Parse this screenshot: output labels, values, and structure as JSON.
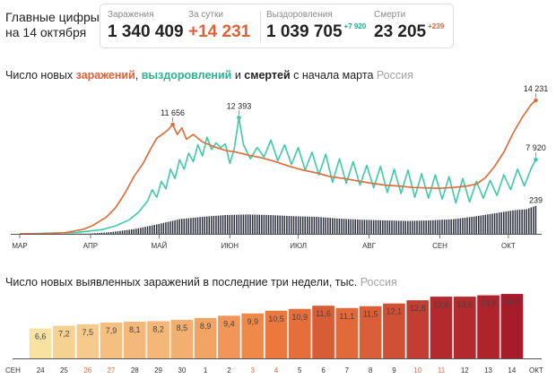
{
  "header": {
    "title_line1": "Главные цифры",
    "title_line2": "на 14 октября",
    "stats": [
      {
        "label": "Заражения",
        "value": "1 340 409",
        "delta": ""
      },
      {
        "label": "За сутки",
        "value": "+14 231",
        "delta": ""
      },
      {
        "label": "Выздоровления",
        "value": "1 039 705",
        "delta": "+7 920"
      },
      {
        "label": "Смерти",
        "value": "23 205",
        "delta": "+239"
      }
    ]
  },
  "colors": {
    "cases": "#d9703f",
    "recoveries": "#3dc9aa",
    "deaths": "#2a2e3c",
    "bar_low": "#f8e2a2",
    "bar_mid": "#ee7b3d",
    "bar_high": "#a81b2b",
    "label": "#444444",
    "axis": "#555555"
  },
  "chart_data": [
    {
      "type": "line",
      "title_parts": {
        "prefix": "Число новых ",
        "cases": "заражений",
        "sep1": ", ",
        "recoveries": "выздоровлений",
        "sep2": " и ",
        "deaths": "смертей",
        "suffix": " с начала марта",
        "region": "Россия"
      },
      "x_ticks": [
        "МАР",
        "АПР",
        "МАЙ",
        "ИЮН",
        "ИЮЛ",
        "АВГ",
        "СЕН",
        "ОКТ"
      ],
      "x_tick_positions": [
        0,
        31,
        61,
        92,
        122,
        153,
        184,
        214
      ],
      "x_range": [
        0,
        227
      ],
      "ylim_lines": [
        0,
        15000
      ],
      "ylim_deaths": [
        0,
        450
      ],
      "grid": false,
      "series": [
        {
          "key": "cases",
          "points": [
            [
              0,
              0
            ],
            [
              10,
              15
            ],
            [
              20,
              120
            ],
            [
              28,
              500
            ],
            [
              32,
              900
            ],
            [
              38,
              1800
            ],
            [
              42,
              2800
            ],
            [
              46,
              4300
            ],
            [
              50,
              6100
            ],
            [
              54,
              7500
            ],
            [
              57,
              8900
            ],
            [
              60,
              10200
            ],
            [
              63,
              10700
            ],
            [
              65,
              11100
            ],
            [
              67,
              11656
            ],
            [
              69,
              10600
            ],
            [
              71,
              11300
            ],
            [
              73,
              10100
            ],
            [
              76,
              10600
            ],
            [
              80,
              9800
            ],
            [
              85,
              9300
            ],
            [
              90,
              8900
            ],
            [
              95,
              8700
            ],
            [
              100,
              8400
            ],
            [
              106,
              8100
            ],
            [
              112,
              7700
            ],
            [
              118,
              7200
            ],
            [
              124,
              6800
            ],
            [
              130,
              6500
            ],
            [
              136,
              6100
            ],
            [
              142,
              5900
            ],
            [
              148,
              5650
            ],
            [
              154,
              5400
            ],
            [
              160,
              5200
            ],
            [
              166,
              5100
            ],
            [
              172,
              4950
            ],
            [
              178,
              4900
            ],
            [
              184,
              4850
            ],
            [
              190,
              4950
            ],
            [
              196,
              5100
            ],
            [
              200,
              5300
            ],
            [
              204,
              6000
            ],
            [
              208,
              7200
            ],
            [
              212,
              8700
            ],
            [
              216,
              10700
            ],
            [
              220,
              12400
            ],
            [
              224,
              13800
            ],
            [
              226,
              14231
            ]
          ],
          "annotations": [
            {
              "x": 67,
              "value": 11656,
              "label": "11 656"
            },
            {
              "x": 226,
              "value": 14231,
              "label": "14 231"
            }
          ]
        },
        {
          "key": "recoveries",
          "points": [
            [
              0,
              0
            ],
            [
              25,
              150
            ],
            [
              36,
              450
            ],
            [
              42,
              850
            ],
            [
              48,
              1500
            ],
            [
              52,
              2300
            ],
            [
              56,
              3500
            ],
            [
              58,
              4700
            ],
            [
              60,
              3900
            ],
            [
              62,
              5600
            ],
            [
              64,
              4800
            ],
            [
              66,
              6900
            ],
            [
              68,
              5900
            ],
            [
              70,
              7900
            ],
            [
              72,
              6900
            ],
            [
              74,
              8600
            ],
            [
              76,
              7700
            ],
            [
              78,
              9500
            ],
            [
              80,
              8300
            ],
            [
              82,
              10300
            ],
            [
              84,
              9000
            ],
            [
              86,
              9700
            ],
            [
              88,
              9200
            ],
            [
              90,
              9600
            ],
            [
              92,
              7500
            ],
            [
              94,
              9100
            ],
            [
              96,
              12393
            ],
            [
              98,
              9500
            ],
            [
              101,
              8000
            ],
            [
              104,
              9200
            ],
            [
              107,
              8200
            ],
            [
              110,
              10000
            ],
            [
              113,
              7800
            ],
            [
              116,
              9500
            ],
            [
              119,
              7400
            ],
            [
              122,
              9200
            ],
            [
              125,
              6800
            ],
            [
              128,
              8700
            ],
            [
              131,
              6300
            ],
            [
              134,
              8500
            ],
            [
              137,
              5500
            ],
            [
              140,
              8000
            ],
            [
              143,
              5400
            ],
            [
              146,
              7700
            ],
            [
              149,
              5200
            ],
            [
              152,
              7300
            ],
            [
              155,
              4900
            ],
            [
              158,
              7200
            ],
            [
              161,
              4400
            ],
            [
              164,
              6900
            ],
            [
              167,
              4300
            ],
            [
              170,
              6800
            ],
            [
              173,
              3900
            ],
            [
              176,
              6400
            ],
            [
              179,
              3800
            ],
            [
              182,
              6300
            ],
            [
              185,
              3700
            ],
            [
              188,
              6100
            ],
            [
              191,
              3300
            ],
            [
              194,
              5900
            ],
            [
              197,
              3400
            ],
            [
              200,
              5600
            ],
            [
              203,
              3800
            ],
            [
              206,
              5700
            ],
            [
              209,
              4100
            ],
            [
              212,
              6300
            ],
            [
              215,
              4700
            ],
            [
              218,
              6900
            ],
            [
              221,
              5100
            ],
            [
              224,
              7000
            ],
            [
              226,
              7920
            ]
          ],
          "annotations": [
            {
              "x": 96,
              "value": 12393,
              "label": "12 393"
            },
            {
              "x": 226,
              "value": 7920,
              "label": "7 920"
            }
          ]
        },
        {
          "key": "deaths",
          "type": "bar",
          "points": [
            [
              30,
              2
            ],
            [
              40,
              15
            ],
            [
              50,
              40
            ],
            [
              60,
              80
            ],
            [
              70,
              125
            ],
            [
              80,
              145
            ],
            [
              90,
              160
            ],
            [
              100,
              165
            ],
            [
              110,
              160
            ],
            [
              120,
              150
            ],
            [
              130,
              145
            ],
            [
              140,
              130
            ],
            [
              150,
              120
            ],
            [
              160,
              115
            ],
            [
              170,
              110
            ],
            [
              180,
              115
            ],
            [
              190,
              125
            ],
            [
              200,
              150
            ],
            [
              208,
              175
            ],
            [
              216,
              200
            ],
            [
              222,
              210
            ],
            [
              226,
              239
            ]
          ],
          "annotations": [
            {
              "x": 226,
              "value": 239,
              "label": "239"
            }
          ]
        }
      ]
    },
    {
      "type": "bar",
      "title": "Число новых выявленных заражений в последние три недели, тыс.",
      "region": "Россия",
      "categories": [
        "24",
        "25",
        "26",
        "27",
        "28",
        "29",
        "30",
        "1",
        "2",
        "3",
        "4",
        "5",
        "6",
        "7",
        "8",
        "9",
        "10",
        "11",
        "12",
        "13",
        "14"
      ],
      "values": [
        6.6,
        7.2,
        7.5,
        7.9,
        8.1,
        8.2,
        8.5,
        8.9,
        9.4,
        9.9,
        10.5,
        10.9,
        11.6,
        11.1,
        11.5,
        12.1,
        12.8,
        13.6,
        13.6,
        13.9,
        14.2
      ],
      "value_labels": [
        "6,6",
        "7,2",
        "7,5",
        "7,9",
        "8,1",
        "8,2",
        "8,5",
        "8,9",
        "9,4",
        "9,9",
        "10,5",
        "10,9",
        "11,6",
        "11,1",
        "11,5",
        "12,1",
        "12,8",
        "13,6",
        "13,6",
        "13,9",
        "14,2"
      ],
      "weekend_categories": [
        "26",
        "27",
        "3",
        "4",
        "10",
        "11"
      ],
      "month_left": "СЕН",
      "month_right": "ОКТ",
      "ylim": [
        0,
        15
      ]
    }
  ]
}
